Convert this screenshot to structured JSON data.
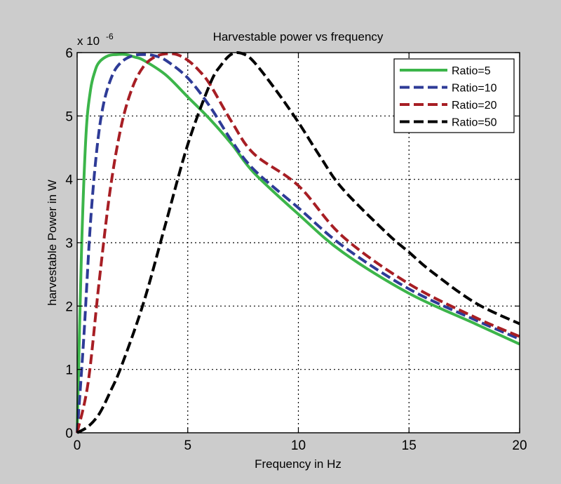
{
  "chart_data": {
    "type": "line",
    "title": "Harvestable power vs frequency",
    "xlabel": "Frequency in Hz",
    "ylabel": "harvestable Power in W",
    "y_multiplier_base": "x 10",
    "y_multiplier_exp": "-6",
    "xlim": [
      0,
      20
    ],
    "ylim": [
      0,
      6
    ],
    "xticks": [
      0,
      5,
      10,
      15,
      20
    ],
    "yticks": [
      0,
      1,
      2,
      3,
      4,
      5,
      6
    ],
    "grid": true,
    "legend_position": "top-right",
    "series": [
      {
        "name": "Ratio=5",
        "color": "#3cb54a",
        "style": "solid",
        "x": [
          0,
          0.2,
          0.4,
          0.6,
          0.8,
          1.0,
          1.4,
          1.8,
          2.2,
          2.6,
          3.0,
          4.0,
          5.0,
          6.0,
          7.0,
          8.0,
          10.0,
          12.0,
          15.0,
          18.0,
          20.0
        ],
        "y": [
          0,
          2.9,
          4.7,
          5.4,
          5.7,
          5.85,
          5.95,
          5.97,
          5.97,
          5.93,
          5.88,
          5.65,
          5.3,
          4.95,
          4.55,
          4.1,
          3.45,
          2.85,
          2.2,
          1.72,
          1.4
        ]
      },
      {
        "name": "Ratio=10",
        "color": "#2e3b97",
        "style": "dashed",
        "x": [
          0,
          0.3,
          0.6,
          0.9,
          1.2,
          1.6,
          2.0,
          2.5,
          3.0,
          3.5,
          4.0,
          5.0,
          6.0,
          7.0,
          8.0,
          10.0,
          12.0,
          15.0,
          18.0,
          20.0
        ],
        "y": [
          0,
          1.5,
          3.3,
          4.5,
          5.2,
          5.65,
          5.85,
          5.95,
          5.97,
          5.95,
          5.88,
          5.6,
          5.15,
          4.6,
          4.15,
          3.55,
          2.95,
          2.27,
          1.78,
          1.48
        ]
      },
      {
        "name": "Ratio=20",
        "color": "#a71e24",
        "style": "dashed",
        "x": [
          0,
          0.5,
          1.0,
          1.5,
          2.0,
          2.5,
          3.0,
          3.5,
          4.0,
          4.5,
          5.0,
          5.5,
          6.0,
          7.0,
          8.0,
          10.0,
          12.0,
          15.0,
          18.0,
          20.0
        ],
        "y": [
          0,
          0.8,
          2.4,
          3.85,
          4.85,
          5.45,
          5.78,
          5.93,
          5.98,
          5.97,
          5.88,
          5.72,
          5.5,
          4.9,
          4.4,
          3.9,
          3.1,
          2.35,
          1.82,
          1.52
        ]
      },
      {
        "name": "Ratio=50",
        "color": "#000000",
        "style": "dashed",
        "x": [
          0,
          0.5,
          1.0,
          1.5,
          2.0,
          3.0,
          4.0,
          5.0,
          6.0,
          6.5,
          7.0,
          7.5,
          8.0,
          9.0,
          10.0,
          11.0,
          12.0,
          14.0,
          15.0,
          16.0,
          18.0,
          20.0
        ],
        "y": [
          0,
          0.1,
          0.3,
          0.65,
          1.05,
          2.05,
          3.3,
          4.55,
          5.5,
          5.8,
          5.98,
          5.98,
          5.85,
          5.4,
          4.9,
          4.35,
          3.85,
          3.15,
          2.85,
          2.55,
          2.05,
          1.72
        ]
      }
    ]
  }
}
